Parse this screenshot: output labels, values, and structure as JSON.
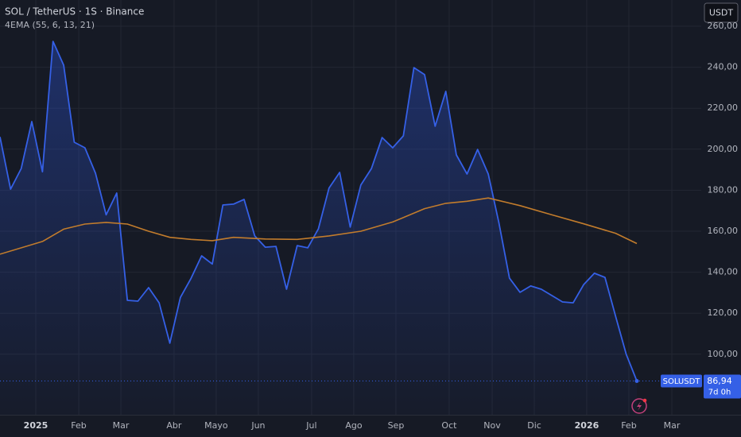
{
  "chart_data": {
    "type": "line",
    "title": "SOL / TetherUS · 1S · Binance",
    "subtitle": "4EMA (55, 6, 13, 21)",
    "currency_button": "USDT",
    "series": [
      {
        "name": "SOLUSDT",
        "color": "#3560e6",
        "x": [
          0,
          1,
          2,
          3,
          4,
          5,
          6,
          7,
          8,
          9,
          10,
          11,
          12,
          13,
          14,
          15,
          16,
          17,
          18,
          19,
          20,
          21,
          22,
          23,
          24,
          25,
          26,
          27,
          28,
          29,
          30,
          31,
          32,
          33,
          34,
          35,
          36,
          37,
          38,
          39,
          40,
          41,
          42,
          43,
          44,
          45,
          46,
          47,
          48,
          49,
          50,
          51,
          52,
          53,
          54,
          55,
          56,
          57,
          58,
          59,
          60
        ],
        "values": [
          206,
          180.5,
          190.6,
          213.5,
          189,
          252.6,
          241,
          203.4,
          200.7,
          188.3,
          168,
          178.6,
          126.3,
          125.9,
          132.5,
          125,
          105.4,
          127.7,
          137,
          148,
          144,
          172.8,
          173.2,
          175.5,
          157.7,
          152.2,
          152.6,
          131.7,
          153,
          151.9,
          161.2,
          181,
          188.7,
          162,
          182.6,
          190.6,
          205.7,
          200.7,
          206.5,
          239.8,
          236.4,
          211.2,
          228.2,
          197.2,
          187.9,
          199.9,
          187.9,
          164.3,
          137.1,
          130.2,
          133.3,
          131.7,
          128.6,
          125.5,
          125.1,
          134,
          139.5,
          137.5,
          118.5,
          100,
          86.94
        ]
      },
      {
        "name": "4EMA",
        "color": "#c27c2c",
        "x": [
          0,
          4,
          6,
          8,
          10,
          12,
          14,
          16,
          18,
          20,
          22,
          25,
          28,
          31,
          34,
          37,
          40,
          42,
          44,
          46,
          49,
          52,
          55,
          58,
          60
        ],
        "values": [
          148.8,
          155,
          161,
          163.5,
          164.3,
          163.5,
          160,
          157,
          156,
          155.4,
          157,
          156.2,
          156,
          157.7,
          160,
          164.5,
          171,
          173.6,
          174.6,
          176.2,
          172.5,
          168,
          163.6,
          159,
          154
        ]
      }
    ],
    "last_price": {
      "value": 86.94,
      "label": "86,94",
      "countdown": "7d 0h"
    },
    "xlim": [
      0,
      66.07
    ],
    "xticks": [
      {
        "value": 3.37,
        "label": "2025"
      },
      {
        "value": 7.42,
        "label": "Feb"
      },
      {
        "value": 11.39,
        "label": "Mar"
      },
      {
        "value": 16.4,
        "label": "Abr"
      },
      {
        "value": 20.37,
        "label": "Mayo"
      },
      {
        "value": 24.34,
        "label": "Jun"
      },
      {
        "value": 29.36,
        "label": "Jul"
      },
      {
        "value": 33.33,
        "label": "Ago"
      },
      {
        "value": 37.3,
        "label": "Sep"
      },
      {
        "value": 42.32,
        "label": "Oct"
      },
      {
        "value": 46.37,
        "label": "Nov"
      },
      {
        "value": 50.34,
        "label": "Dic"
      },
      {
        "value": 55.28,
        "label": "2026"
      },
      {
        "value": 59.25,
        "label": "Feb"
      },
      {
        "value": 63.3,
        "label": "Mar"
      }
    ],
    "ylim": [
      70.47,
      272.79
    ],
    "yticks": [
      {
        "value": 100,
        "label": "100,00"
      },
      {
        "value": 120,
        "label": "120,00"
      },
      {
        "value": 140,
        "label": "140,00"
      },
      {
        "value": 160,
        "label": "160,00"
      },
      {
        "value": 180,
        "label": "180,00"
      },
      {
        "value": 200,
        "label": "200,00"
      },
      {
        "value": 220,
        "label": "220,00"
      },
      {
        "value": 240,
        "label": "240,00"
      },
      {
        "value": 260,
        "label": "260,00"
      }
    ],
    "grid": true
  }
}
